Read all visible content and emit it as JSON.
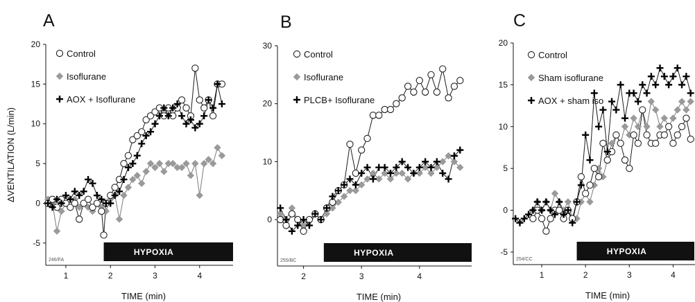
{
  "figure": {
    "ylabel": "ΔVENTILATION (L/min)",
    "xlabel": "TIME (min)",
    "hypoxia_label": "HYPOXIA"
  },
  "colors": {
    "line": "#222222",
    "gray_marker": "#9a9a9a",
    "bar": "#111111",
    "open_fill": "#ffffff"
  },
  "chart_data": [
    {
      "type": "line",
      "panel": "A",
      "code": "246/FA",
      "xlabel": "TIME (min)",
      "ylabel": "ΔVENTILATION (L/min)",
      "xlim": [
        0.55,
        4.75
      ],
      "ylim": [
        -7.8,
        20
      ],
      "xticks": [
        1,
        2,
        3,
        4
      ],
      "yticks": [
        -5,
        0,
        5,
        10,
        15,
        20
      ],
      "hypoxia": [
        1.85,
        4.75
      ],
      "legend": [
        "Control",
        "Isoflurane",
        "AOX + Isoflurane"
      ],
      "series": [
        {
          "name": "Control",
          "marker": "open-circle",
          "x": [
            0.6,
            0.7,
            0.8,
            0.9,
            1.0,
            1.1,
            1.2,
            1.3,
            1.4,
            1.5,
            1.6,
            1.7,
            1.8,
            1.85,
            1.9,
            2.0,
            2.1,
            2.2,
            2.3,
            2.4,
            2.5,
            2.6,
            2.7,
            2.8,
            2.9,
            3.0,
            3.1,
            3.2,
            3.3,
            3.4,
            3.5,
            3.6,
            3.7,
            3.8,
            3.9,
            4.0,
            4.1,
            4.2,
            4.3,
            4.4,
            4.5
          ],
          "y": [
            0,
            0.5,
            -0.5,
            0.5,
            0,
            -0.5,
            0,
            -2,
            0,
            0.5,
            -0.5,
            0,
            -1,
            -4,
            0,
            1,
            2,
            3,
            5,
            6,
            8,
            8.5,
            9,
            10.5,
            11,
            11.5,
            12,
            11,
            12,
            11,
            12,
            13,
            12,
            11,
            17,
            13,
            12,
            13,
            11,
            15,
            15
          ]
        },
        {
          "name": "Isoflurane",
          "marker": "gray-diamond",
          "x": [
            0.6,
            0.7,
            0.8,
            0.9,
            1.0,
            1.1,
            1.2,
            1.3,
            1.4,
            1.5,
            1.6,
            1.7,
            1.8,
            1.9,
            2.0,
            2.1,
            2.2,
            2.3,
            2.4,
            2.5,
            2.6,
            2.7,
            2.8,
            2.9,
            3.0,
            3.1,
            3.2,
            3.3,
            3.4,
            3.5,
            3.6,
            3.7,
            3.8,
            3.9,
            4.0,
            4.1,
            4.2,
            4.3,
            4.4,
            4.5
          ],
          "y": [
            0.5,
            0,
            -3.5,
            -1,
            0,
            -0.5,
            0.5,
            -0.5,
            0,
            -0.5,
            -1,
            0,
            -0.5,
            -1,
            0.5,
            1,
            -2,
            1,
            2,
            3,
            3.5,
            2.5,
            4,
            5,
            4.5,
            5,
            4,
            5,
            5,
            4.5,
            4.5,
            5,
            3.5,
            5,
            1,
            5,
            5.5,
            5,
            7,
            6
          ]
        },
        {
          "name": "AOX + Isoflurane",
          "marker": "plus",
          "x": [
            0.6,
            0.7,
            0.8,
            0.9,
            1.0,
            1.1,
            1.2,
            1.3,
            1.4,
            1.5,
            1.6,
            1.7,
            1.8,
            1.9,
            2.0,
            2.1,
            2.2,
            2.3,
            2.4,
            2.5,
            2.6,
            2.7,
            2.8,
            2.9,
            3.0,
            3.1,
            3.2,
            3.3,
            3.4,
            3.5,
            3.6,
            3.7,
            3.8,
            3.9,
            4.0,
            4.1,
            4.2,
            4.3,
            4.4,
            4.5
          ],
          "y": [
            0,
            -0.5,
            0.5,
            0,
            1,
            0.5,
            1.5,
            1,
            1.5,
            3,
            2.5,
            1,
            0.5,
            0,
            0,
            1,
            1.5,
            3,
            4.5,
            5,
            6,
            7.5,
            8.5,
            9,
            10,
            11,
            12,
            11,
            12,
            12.5,
            11,
            10,
            10.5,
            9.5,
            10,
            11,
            13,
            12,
            15,
            12.5
          ]
        }
      ]
    },
    {
      "type": "line",
      "panel": "B",
      "code": "255/BC",
      "xlabel": "TIME (min)",
      "ylabel": "",
      "xlim": [
        1.55,
        4.9
      ],
      "ylim": [
        -8,
        30
      ],
      "xticks": [
        2,
        3,
        4
      ],
      "yticks": [
        0,
        10,
        20,
        30
      ],
      "hypoxia": [
        2.35,
        4.9
      ],
      "legend": [
        "Control",
        "Isoflurane",
        "PLCB+ Isoflurane"
      ],
      "series": [
        {
          "name": "Control",
          "marker": "open-circle",
          "x": [
            1.6,
            1.7,
            1.8,
            1.9,
            2.0,
            2.1,
            2.2,
            2.3,
            2.4,
            2.5,
            2.6,
            2.7,
            2.8,
            2.9,
            3.0,
            3.1,
            3.2,
            3.3,
            3.4,
            3.5,
            3.6,
            3.7,
            3.8,
            3.9,
            4.0,
            4.1,
            4.2,
            4.3,
            4.4,
            4.5,
            4.6,
            4.7
          ],
          "y": [
            0,
            -1,
            1,
            0,
            -2,
            0,
            1,
            0,
            2,
            3,
            5,
            6,
            13,
            8,
            12,
            14,
            18,
            18,
            19,
            19,
            20,
            21,
            23,
            22,
            24,
            22,
            25,
            22,
            26,
            21,
            23,
            24
          ]
        },
        {
          "name": "Isoflurane",
          "marker": "gray-diamond",
          "x": [
            1.6,
            1.7,
            1.8,
            1.9,
            2.0,
            2.1,
            2.2,
            2.3,
            2.4,
            2.5,
            2.6,
            2.7,
            2.8,
            2.9,
            3.0,
            3.1,
            3.2,
            3.3,
            3.4,
            3.5,
            3.6,
            3.7,
            3.8,
            3.9,
            4.0,
            4.1,
            4.2,
            4.3,
            4.4,
            4.5,
            4.6,
            4.7
          ],
          "y": [
            1,
            0,
            2,
            0,
            -1,
            0,
            1,
            0,
            1,
            2,
            3,
            4,
            5,
            5,
            6,
            7,
            8,
            7,
            8,
            7,
            8,
            8,
            7,
            8,
            8,
            9,
            8,
            9,
            10,
            11,
            10,
            9
          ]
        },
        {
          "name": "PLCB+ Isoflurane",
          "marker": "plus",
          "x": [
            1.6,
            1.7,
            1.8,
            1.9,
            2.0,
            2.1,
            2.2,
            2.3,
            2.4,
            2.5,
            2.6,
            2.7,
            2.8,
            2.9,
            3.0,
            3.1,
            3.2,
            3.3,
            3.4,
            3.5,
            3.6,
            3.7,
            3.8,
            3.9,
            4.0,
            4.1,
            4.2,
            4.3,
            4.4,
            4.5,
            4.6,
            4.7
          ],
          "y": [
            2,
            0,
            -2,
            -1,
            0,
            -1,
            1,
            0,
            2,
            4,
            5,
            6,
            7,
            6,
            8,
            9,
            7,
            9,
            9,
            8,
            9,
            10,
            9,
            8,
            9,
            10,
            9,
            10,
            8,
            7,
            11,
            12
          ]
        }
      ]
    },
    {
      "type": "line",
      "panel": "C",
      "code": "254/CC",
      "xlabel": "TIME (min)",
      "ylabel": "",
      "xlim": [
        0.35,
        4.5
      ],
      "ylim": [
        -6.5,
        20
      ],
      "xticks": [
        1,
        2,
        3,
        4
      ],
      "yticks": [
        -5,
        0,
        5,
        10,
        15,
        20
      ],
      "hypoxia": [
        1.8,
        4.5
      ],
      "legend": [
        "Control",
        "Sham isoflurane",
        "AOX + sham iso"
      ],
      "series": [
        {
          "name": "Control",
          "marker": "open-circle",
          "x": [
            0.8,
            0.9,
            1.0,
            1.1,
            1.2,
            1.3,
            1.4,
            1.5,
            1.6,
            1.7,
            1.8,
            1.9,
            2.0,
            2.1,
            2.2,
            2.3,
            2.4,
            2.5,
            2.6,
            2.7,
            2.8,
            2.9,
            3.0,
            3.1,
            3.2,
            3.3,
            3.4,
            3.5,
            3.6,
            3.7,
            3.8,
            3.9,
            4.0,
            4.1,
            4.2,
            4.3,
            4.4
          ],
          "y": [
            -1,
            0,
            -1,
            -2.5,
            -1,
            0,
            0,
            -1,
            0,
            -1,
            1,
            4,
            2,
            3,
            5,
            4,
            8,
            6,
            7,
            9,
            8,
            6,
            5,
            9,
            8,
            12,
            9,
            8,
            8,
            9,
            9,
            10,
            8,
            9,
            10,
            11,
            8.5
          ]
        },
        {
          "name": "Sham isoflurane",
          "marker": "gray-diamond",
          "x": [
            0.8,
            0.9,
            1.0,
            1.1,
            1.2,
            1.3,
            1.4,
            1.5,
            1.6,
            1.7,
            1.8,
            1.9,
            2.0,
            2.1,
            2.2,
            2.3,
            2.4,
            2.5,
            2.6,
            2.7,
            2.8,
            2.9,
            3.0,
            3.1,
            3.2,
            3.3,
            3.4,
            3.5,
            3.6,
            3.7,
            3.8,
            3.9,
            4.0,
            4.1,
            4.2,
            4.3,
            4.4
          ],
          "y": [
            0,
            1,
            0,
            1,
            0,
            2,
            1,
            0,
            1,
            -1,
            -1,
            1,
            2,
            1,
            3,
            5,
            4,
            6,
            8,
            9,
            8,
            10,
            9,
            11,
            10,
            12,
            10,
            13,
            12,
            10,
            11,
            10,
            11,
            12,
            13,
            12,
            13
          ]
        },
        {
          "name": "AOX + sham iso",
          "marker": "plus",
          "x": [
            0.4,
            0.5,
            0.6,
            0.7,
            0.8,
            0.9,
            1.0,
            1.1,
            1.2,
            1.3,
            1.4,
            1.5,
            1.6,
            1.7,
            1.8,
            1.9,
            2.0,
            2.1,
            2.2,
            2.3,
            2.4,
            2.5,
            2.6,
            2.7,
            2.8,
            2.9,
            3.0,
            3.1,
            3.2,
            3.3,
            3.4,
            3.5,
            3.6,
            3.7,
            3.8,
            3.9,
            4.0,
            4.1,
            4.2,
            4.3,
            4.4
          ],
          "y": [
            -1,
            -1.5,
            -1,
            -0.5,
            0,
            1,
            0,
            1,
            0,
            -0.5,
            1,
            -0.5,
            0,
            -1.5,
            1,
            3,
            9,
            6,
            14,
            10,
            12,
            7,
            13,
            12,
            15,
            11,
            14,
            14,
            13,
            15,
            14,
            16,
            15,
            17,
            16,
            15,
            16,
            17,
            15,
            16,
            14
          ]
        }
      ]
    }
  ]
}
